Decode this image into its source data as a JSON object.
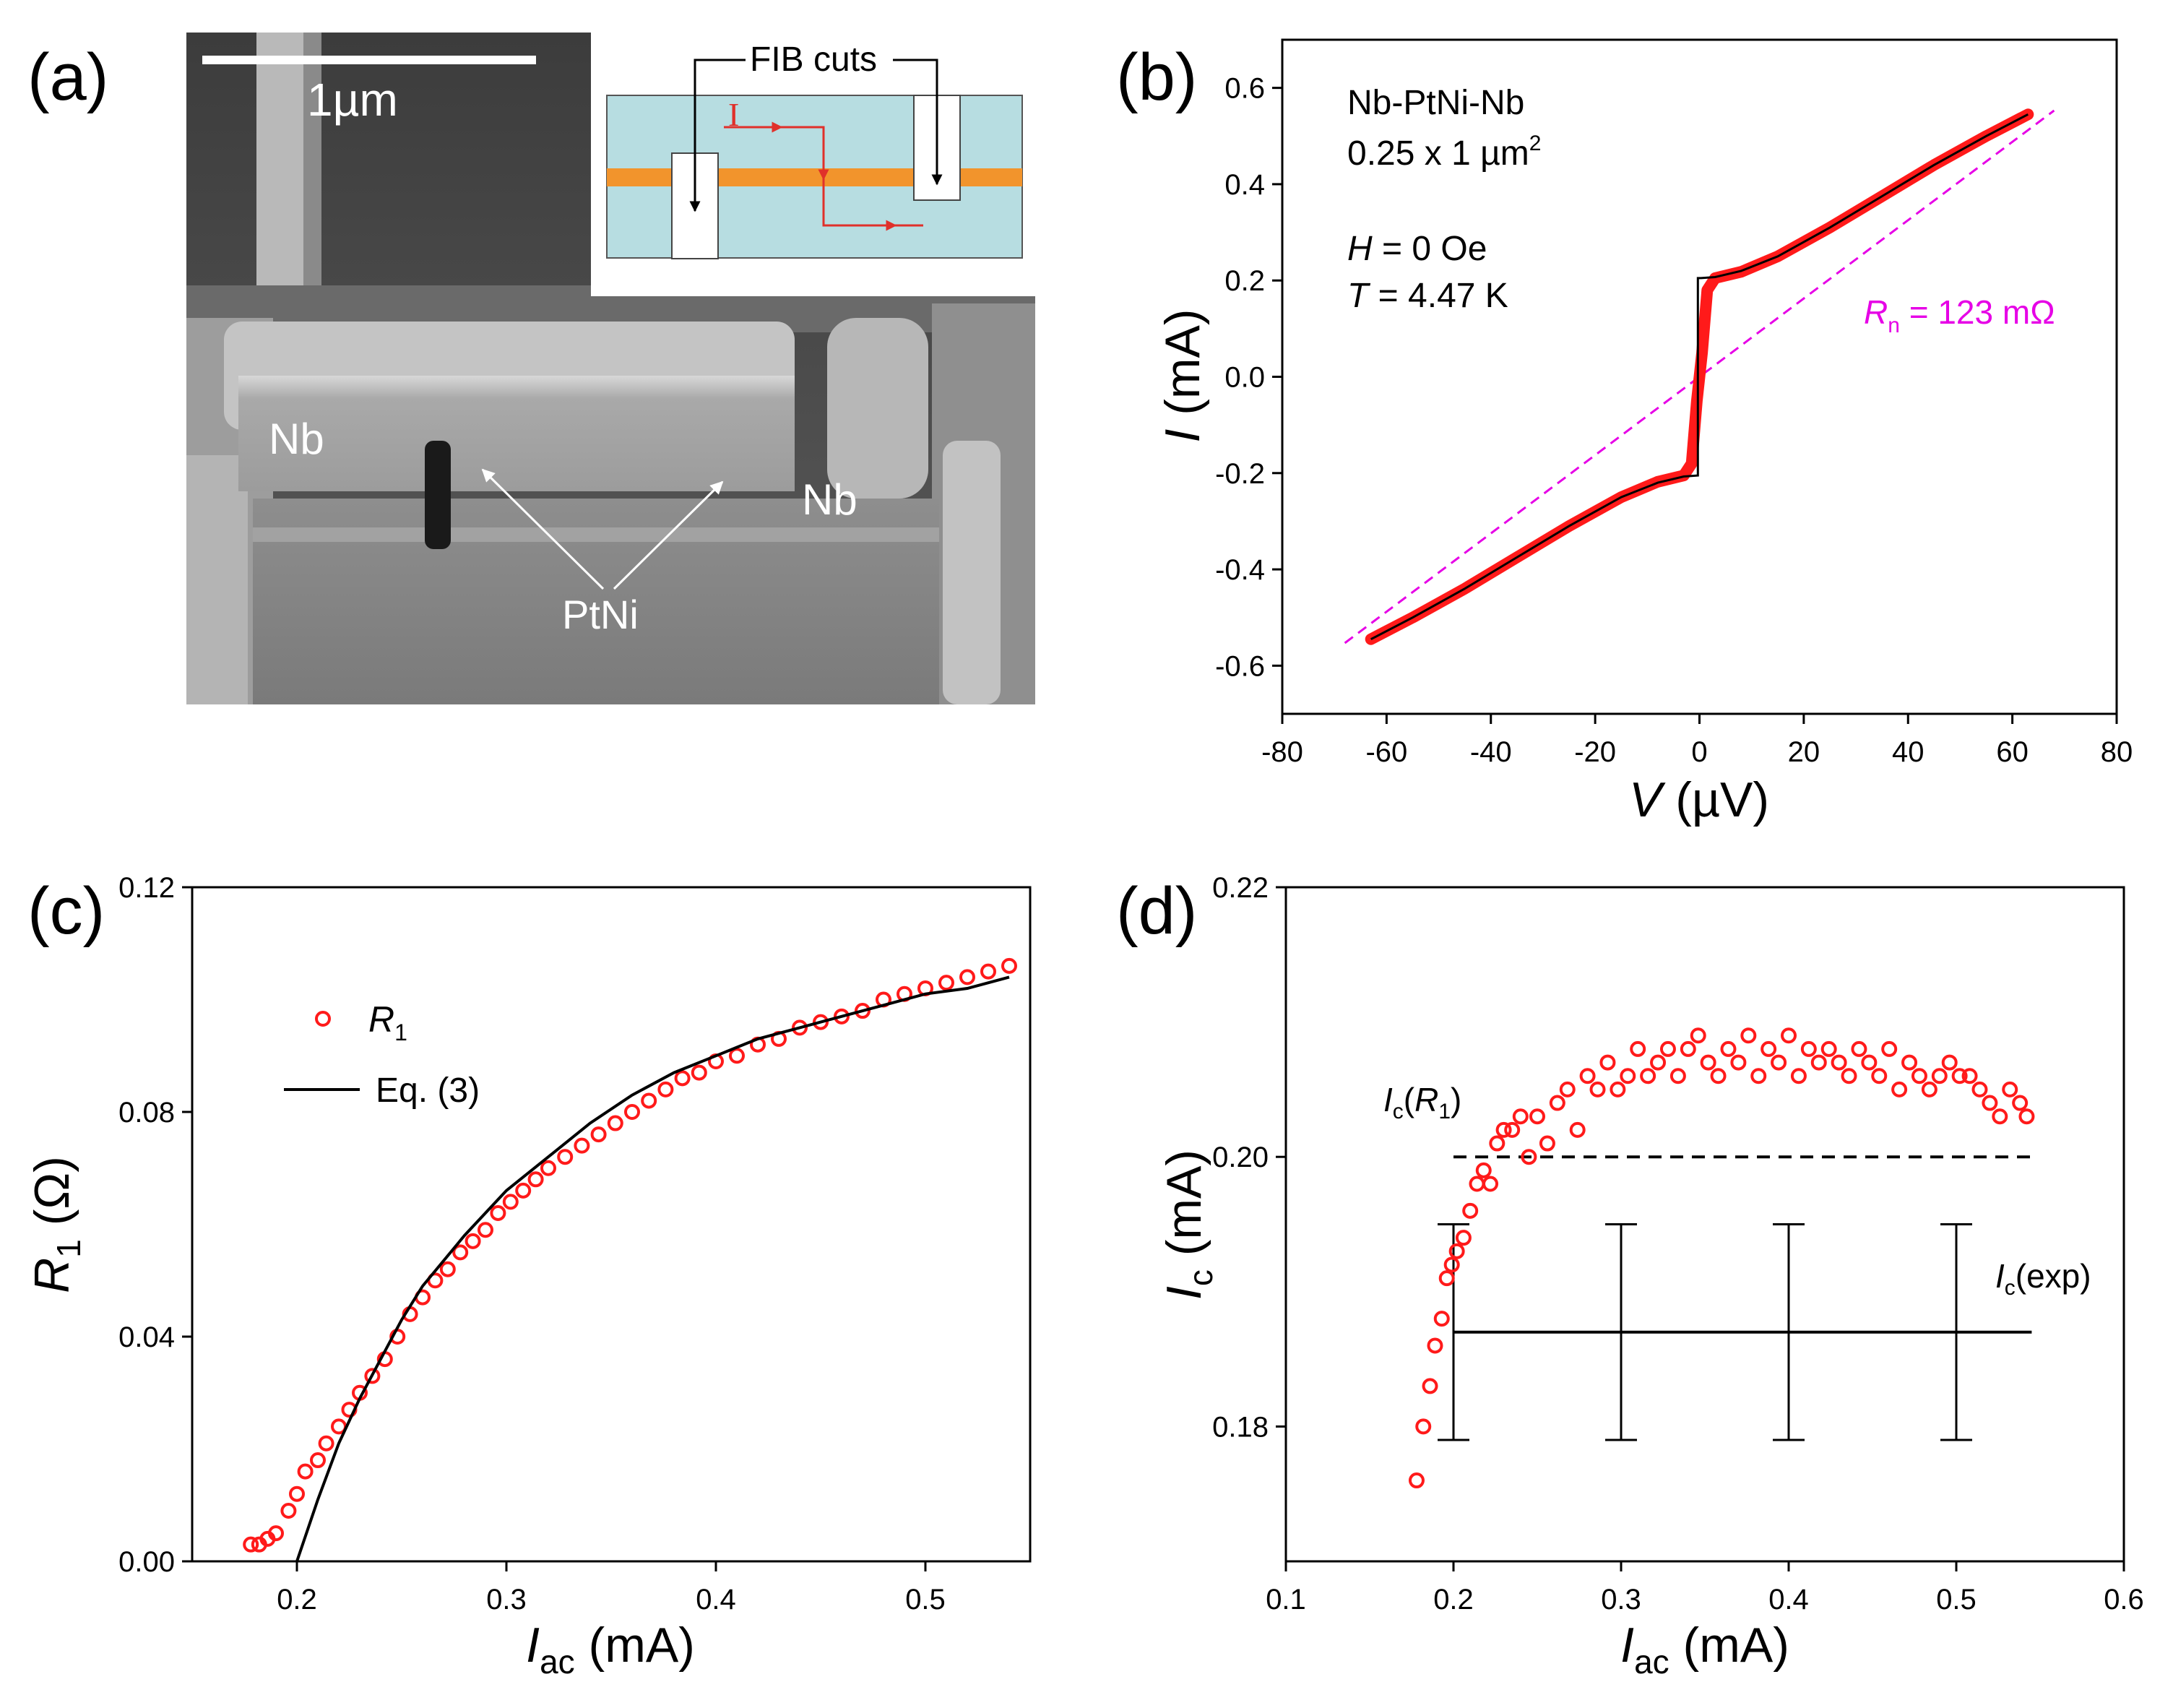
{
  "panel_a": {
    "label": "(a)",
    "scale_bar": "1µm",
    "labels": {
      "nb_left": "Nb",
      "nb_right": "Nb",
      "ptni": "PtNi"
    },
    "inset": {
      "fib_cuts": "FIB cuts",
      "current": "I"
    },
    "colors": {
      "substrate": "#b7dde1",
      "layer": "#f2942c",
      "current": "#e0302a"
    }
  },
  "chart_data": [
    {
      "id": "b",
      "type": "line",
      "panel_label": "(b)",
      "xlabel": {
        "symbol": "V",
        "unit": " (µV)"
      },
      "ylabel": {
        "symbol": "I",
        "unit": " (mA)"
      },
      "xlim": [
        -80,
        80
      ],
      "ylim": [
        -0.7,
        0.7
      ],
      "xticks": [
        -80,
        -60,
        -40,
        -20,
        0,
        20,
        40,
        60,
        80
      ],
      "yticks": [
        -0.6,
        -0.4,
        -0.2,
        0.0,
        0.2,
        0.4,
        0.6
      ],
      "xtick_labels": [
        "-80",
        "-60",
        "-40",
        "-20",
        "0",
        "20",
        "40",
        "60",
        "80"
      ],
      "ytick_labels": [
        "-0.6",
        "-0.4",
        "-0.2",
        "0.0",
        "0.2",
        "0.4",
        "0.6"
      ],
      "annotations": {
        "sample": "Nb-PtNi-Nb",
        "area": "0.25 x 1 µm",
        "area_exp": "2",
        "h_sym": "H",
        "h_val": " = 0 Oe",
        "t_sym": "T",
        "t_val": " = 4.47 K",
        "rn_sym": "R",
        "rn_sub": "n",
        "rn_val": " = 123 mΩ"
      },
      "series": [
        {
          "name": "measured I–V",
          "color": "#ff1a1a",
          "x": [
            -63,
            -55,
            -45,
            -35,
            -25,
            -15,
            -8,
            -3,
            -1.5,
            -0.5,
            0.5,
            1.5,
            3,
            8,
            15,
            25,
            35,
            45,
            55,
            63
          ],
          "y": [
            -0.545,
            -0.5,
            -0.44,
            -0.375,
            -0.31,
            -0.25,
            -0.218,
            -0.205,
            -0.18,
            -0.05,
            0.05,
            0.18,
            0.205,
            0.218,
            0.25,
            0.31,
            0.375,
            0.44,
            0.5,
            0.545
          ]
        },
        {
          "name": "fit",
          "color": "#000000",
          "x": [
            -63,
            -55,
            -45,
            -35,
            -25,
            -15,
            -8,
            -3,
            -0.3,
            -0.3,
            0.3,
            0.3,
            3,
            8,
            15,
            25,
            35,
            45,
            55,
            63
          ],
          "y": [
            -0.545,
            -0.5,
            -0.44,
            -0.375,
            -0.31,
            -0.25,
            -0.22,
            -0.207,
            -0.205,
            0.205,
            0.205,
            0.205,
            0.207,
            0.22,
            0.25,
            0.31,
            0.375,
            0.44,
            0.5,
            0.545
          ]
        },
        {
          "name": "Rn line",
          "color": "#e600e6",
          "style": "dashed",
          "x": [
            -68,
            68
          ],
          "y": [
            -0.553,
            0.553
          ]
        }
      ]
    },
    {
      "id": "c",
      "type": "scatter",
      "panel_label": "(c)",
      "xlabel": {
        "symbol": "I",
        "sub": "ac",
        "unit": " (mA)"
      },
      "ylabel": {
        "symbol": "R",
        "sub": "1",
        "unit": " (Ω)"
      },
      "xlim": [
        0.15,
        0.55
      ],
      "ylim": [
        0.0,
        0.12
      ],
      "xticks": [
        0.2,
        0.3,
        0.4,
        0.5
      ],
      "yticks": [
        0.0,
        0.04,
        0.08,
        0.12
      ],
      "xtick_labels": [
        "0.2",
        "0.3",
        "0.4",
        "0.5"
      ],
      "ytick_labels": [
        "0.00",
        "0.04",
        "0.08",
        "0.12"
      ],
      "legend": {
        "position": "top-left",
        "r1_sym": "R",
        "r1_sub": "1",
        "fit": "Eq. (3)"
      },
      "series": [
        {
          "name": "R1",
          "color": "#ff1a1a",
          "marker": "open-circle",
          "x": [
            0.178,
            0.182,
            0.186,
            0.19,
            0.196,
            0.2,
            0.204,
            0.21,
            0.214,
            0.22,
            0.225,
            0.23,
            0.236,
            0.242,
            0.248,
            0.254,
            0.26,
            0.266,
            0.272,
            0.278,
            0.284,
            0.29,
            0.296,
            0.302,
            0.308,
            0.314,
            0.32,
            0.328,
            0.336,
            0.344,
            0.352,
            0.36,
            0.368,
            0.376,
            0.384,
            0.392,
            0.4,
            0.41,
            0.42,
            0.43,
            0.44,
            0.45,
            0.46,
            0.47,
            0.48,
            0.49,
            0.5,
            0.51,
            0.52,
            0.53,
            0.54
          ],
          "y": [
            0.003,
            0.003,
            0.004,
            0.005,
            0.009,
            0.012,
            0.016,
            0.018,
            0.021,
            0.024,
            0.027,
            0.03,
            0.033,
            0.036,
            0.04,
            0.044,
            0.047,
            0.05,
            0.052,
            0.055,
            0.057,
            0.059,
            0.062,
            0.064,
            0.066,
            0.068,
            0.07,
            0.072,
            0.074,
            0.076,
            0.078,
            0.08,
            0.082,
            0.084,
            0.086,
            0.087,
            0.089,
            0.09,
            0.092,
            0.093,
            0.095,
            0.096,
            0.097,
            0.098,
            0.1,
            0.101,
            0.102,
            0.103,
            0.104,
            0.105,
            0.106
          ]
        },
        {
          "name": "Eq. (3)",
          "color": "#000000",
          "style": "solid",
          "x": [
            0.2,
            0.21,
            0.22,
            0.23,
            0.24,
            0.25,
            0.26,
            0.28,
            0.3,
            0.32,
            0.34,
            0.36,
            0.38,
            0.4,
            0.42,
            0.44,
            0.46,
            0.48,
            0.5,
            0.52,
            0.54
          ],
          "y": [
            0.0,
            0.011,
            0.021,
            0.029,
            0.036,
            0.043,
            0.049,
            0.058,
            0.066,
            0.072,
            0.078,
            0.083,
            0.087,
            0.09,
            0.093,
            0.095,
            0.097,
            0.099,
            0.101,
            0.102,
            0.104
          ]
        }
      ]
    },
    {
      "id": "d",
      "type": "scatter",
      "panel_label": "(d)",
      "xlabel": {
        "symbol": "I",
        "sub": "ac",
        "unit": " (mA)"
      },
      "ylabel": {
        "symbol": "I",
        "sub": "c",
        "unit": " (mA)"
      },
      "xlim": [
        0.1,
        0.6
      ],
      "ylim": [
        0.17,
        0.22
      ],
      "xticks": [
        0.1,
        0.2,
        0.3,
        0.4,
        0.5,
        0.6
      ],
      "yticks": [
        0.18,
        0.2,
        0.22
      ],
      "xtick_labels": [
        "0.1",
        "0.2",
        "0.3",
        "0.4",
        "0.5",
        "0.6"
      ],
      "ytick_labels": [
        "0.18",
        "0.20",
        "0.22"
      ],
      "annotations": {
        "icr1": {
          "sym": "I",
          "sub": "c",
          "open": "(",
          "r": "R",
          "rsub": "1",
          "close": ")"
        },
        "icexp": {
          "sym": "I",
          "sub": "c",
          "text": "(exp)"
        }
      },
      "reference_lines": [
        {
          "name": "Ic(R1)",
          "y": 0.2,
          "x_from": 0.2,
          "x_to": 0.545,
          "style": "dashed"
        },
        {
          "name": "Ic(exp)",
          "y": 0.187,
          "x_from": 0.2,
          "x_to": 0.545,
          "style": "solid"
        }
      ],
      "error_bars": {
        "x": [
          0.2,
          0.3,
          0.4,
          0.5
        ],
        "center": 0.187,
        "low": 0.179,
        "high": 0.195
      },
      "series": [
        {
          "name": "Ic",
          "color": "#ff1a1a",
          "marker": "open-circle",
          "x": [
            0.178,
            0.182,
            0.186,
            0.189,
            0.193,
            0.196,
            0.199,
            0.202,
            0.206,
            0.21,
            0.214,
            0.218,
            0.222,
            0.226,
            0.23,
            0.235,
            0.24,
            0.245,
            0.25,
            0.256,
            0.262,
            0.268,
            0.274,
            0.28,
            0.286,
            0.292,
            0.298,
            0.304,
            0.31,
            0.316,
            0.322,
            0.328,
            0.334,
            0.34,
            0.346,
            0.352,
            0.358,
            0.364,
            0.37,
            0.376,
            0.382,
            0.388,
            0.394,
            0.4,
            0.406,
            0.412,
            0.418,
            0.424,
            0.43,
            0.436,
            0.442,
            0.448,
            0.454,
            0.46,
            0.466,
            0.472,
            0.478,
            0.484,
            0.49,
            0.496,
            0.502,
            0.508,
            0.514,
            0.52,
            0.526,
            0.532,
            0.538,
            0.542
          ],
          "y": [
            0.176,
            0.18,
            0.183,
            0.186,
            0.188,
            0.191,
            0.192,
            0.193,
            0.194,
            0.196,
            0.198,
            0.199,
            0.198,
            0.201,
            0.202,
            0.202,
            0.203,
            0.2,
            0.203,
            0.201,
            0.204,
            0.205,
            0.202,
            0.206,
            0.205,
            0.207,
            0.205,
            0.206,
            0.208,
            0.206,
            0.207,
            0.208,
            0.206,
            0.208,
            0.209,
            0.207,
            0.206,
            0.208,
            0.207,
            0.209,
            0.206,
            0.208,
            0.207,
            0.209,
            0.206,
            0.208,
            0.207,
            0.208,
            0.207,
            0.206,
            0.208,
            0.207,
            0.206,
            0.208,
            0.205,
            0.207,
            0.206,
            0.205,
            0.206,
            0.207,
            0.206,
            0.206,
            0.205,
            0.204,
            0.203,
            0.205,
            0.204,
            0.203
          ]
        }
      ]
    }
  ]
}
